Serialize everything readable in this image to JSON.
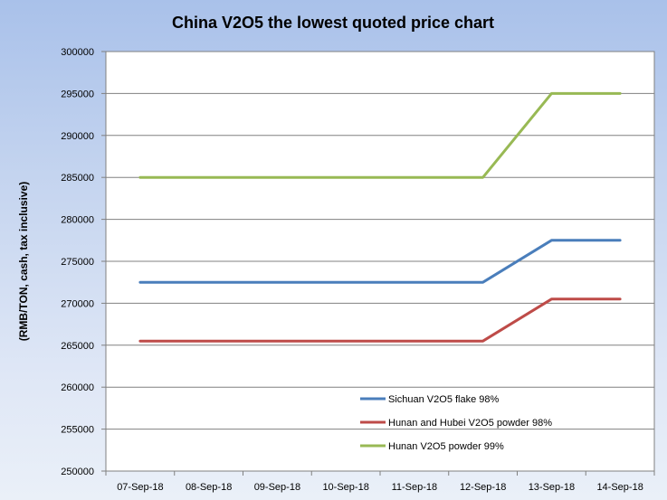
{
  "chart_data": {
    "type": "line",
    "title": "China V2O5 the lowest quoted price chart",
    "xlabel": "",
    "ylabel": "(RMB/TON, cash, tax inclusive)",
    "categories": [
      "07-Sep-18",
      "08-Sep-18",
      "09-Sep-18",
      "10-Sep-18",
      "11-Sep-18",
      "12-Sep-18",
      "13-Sep-18",
      "14-Sep-18"
    ],
    "ylim": [
      250000,
      300000
    ],
    "yticks": [
      "250000",
      "255000",
      "260000",
      "265000",
      "270000",
      "275000",
      "280000",
      "285000",
      "290000",
      "295000",
      "300000"
    ],
    "grid": "horizontal",
    "legend_position": "lower-right inside plot",
    "series": [
      {
        "name": "Sichuan V2O5 flake 98%",
        "color": "#4a7ebb",
        "values": [
          272500,
          272500,
          272500,
          272500,
          272500,
          272500,
          277500,
          277500
        ]
      },
      {
        "name": "Hunan and Hubei V2O5 powder 98%",
        "color": "#be4b48",
        "values": [
          265500,
          265500,
          265500,
          265500,
          265500,
          265500,
          270500,
          270500
        ]
      },
      {
        "name": "Hunan V2O5 powder 99%",
        "color": "#98b954",
        "values": [
          285000,
          285000,
          285000,
          285000,
          285000,
          285000,
          295000,
          295000
        ]
      }
    ]
  }
}
